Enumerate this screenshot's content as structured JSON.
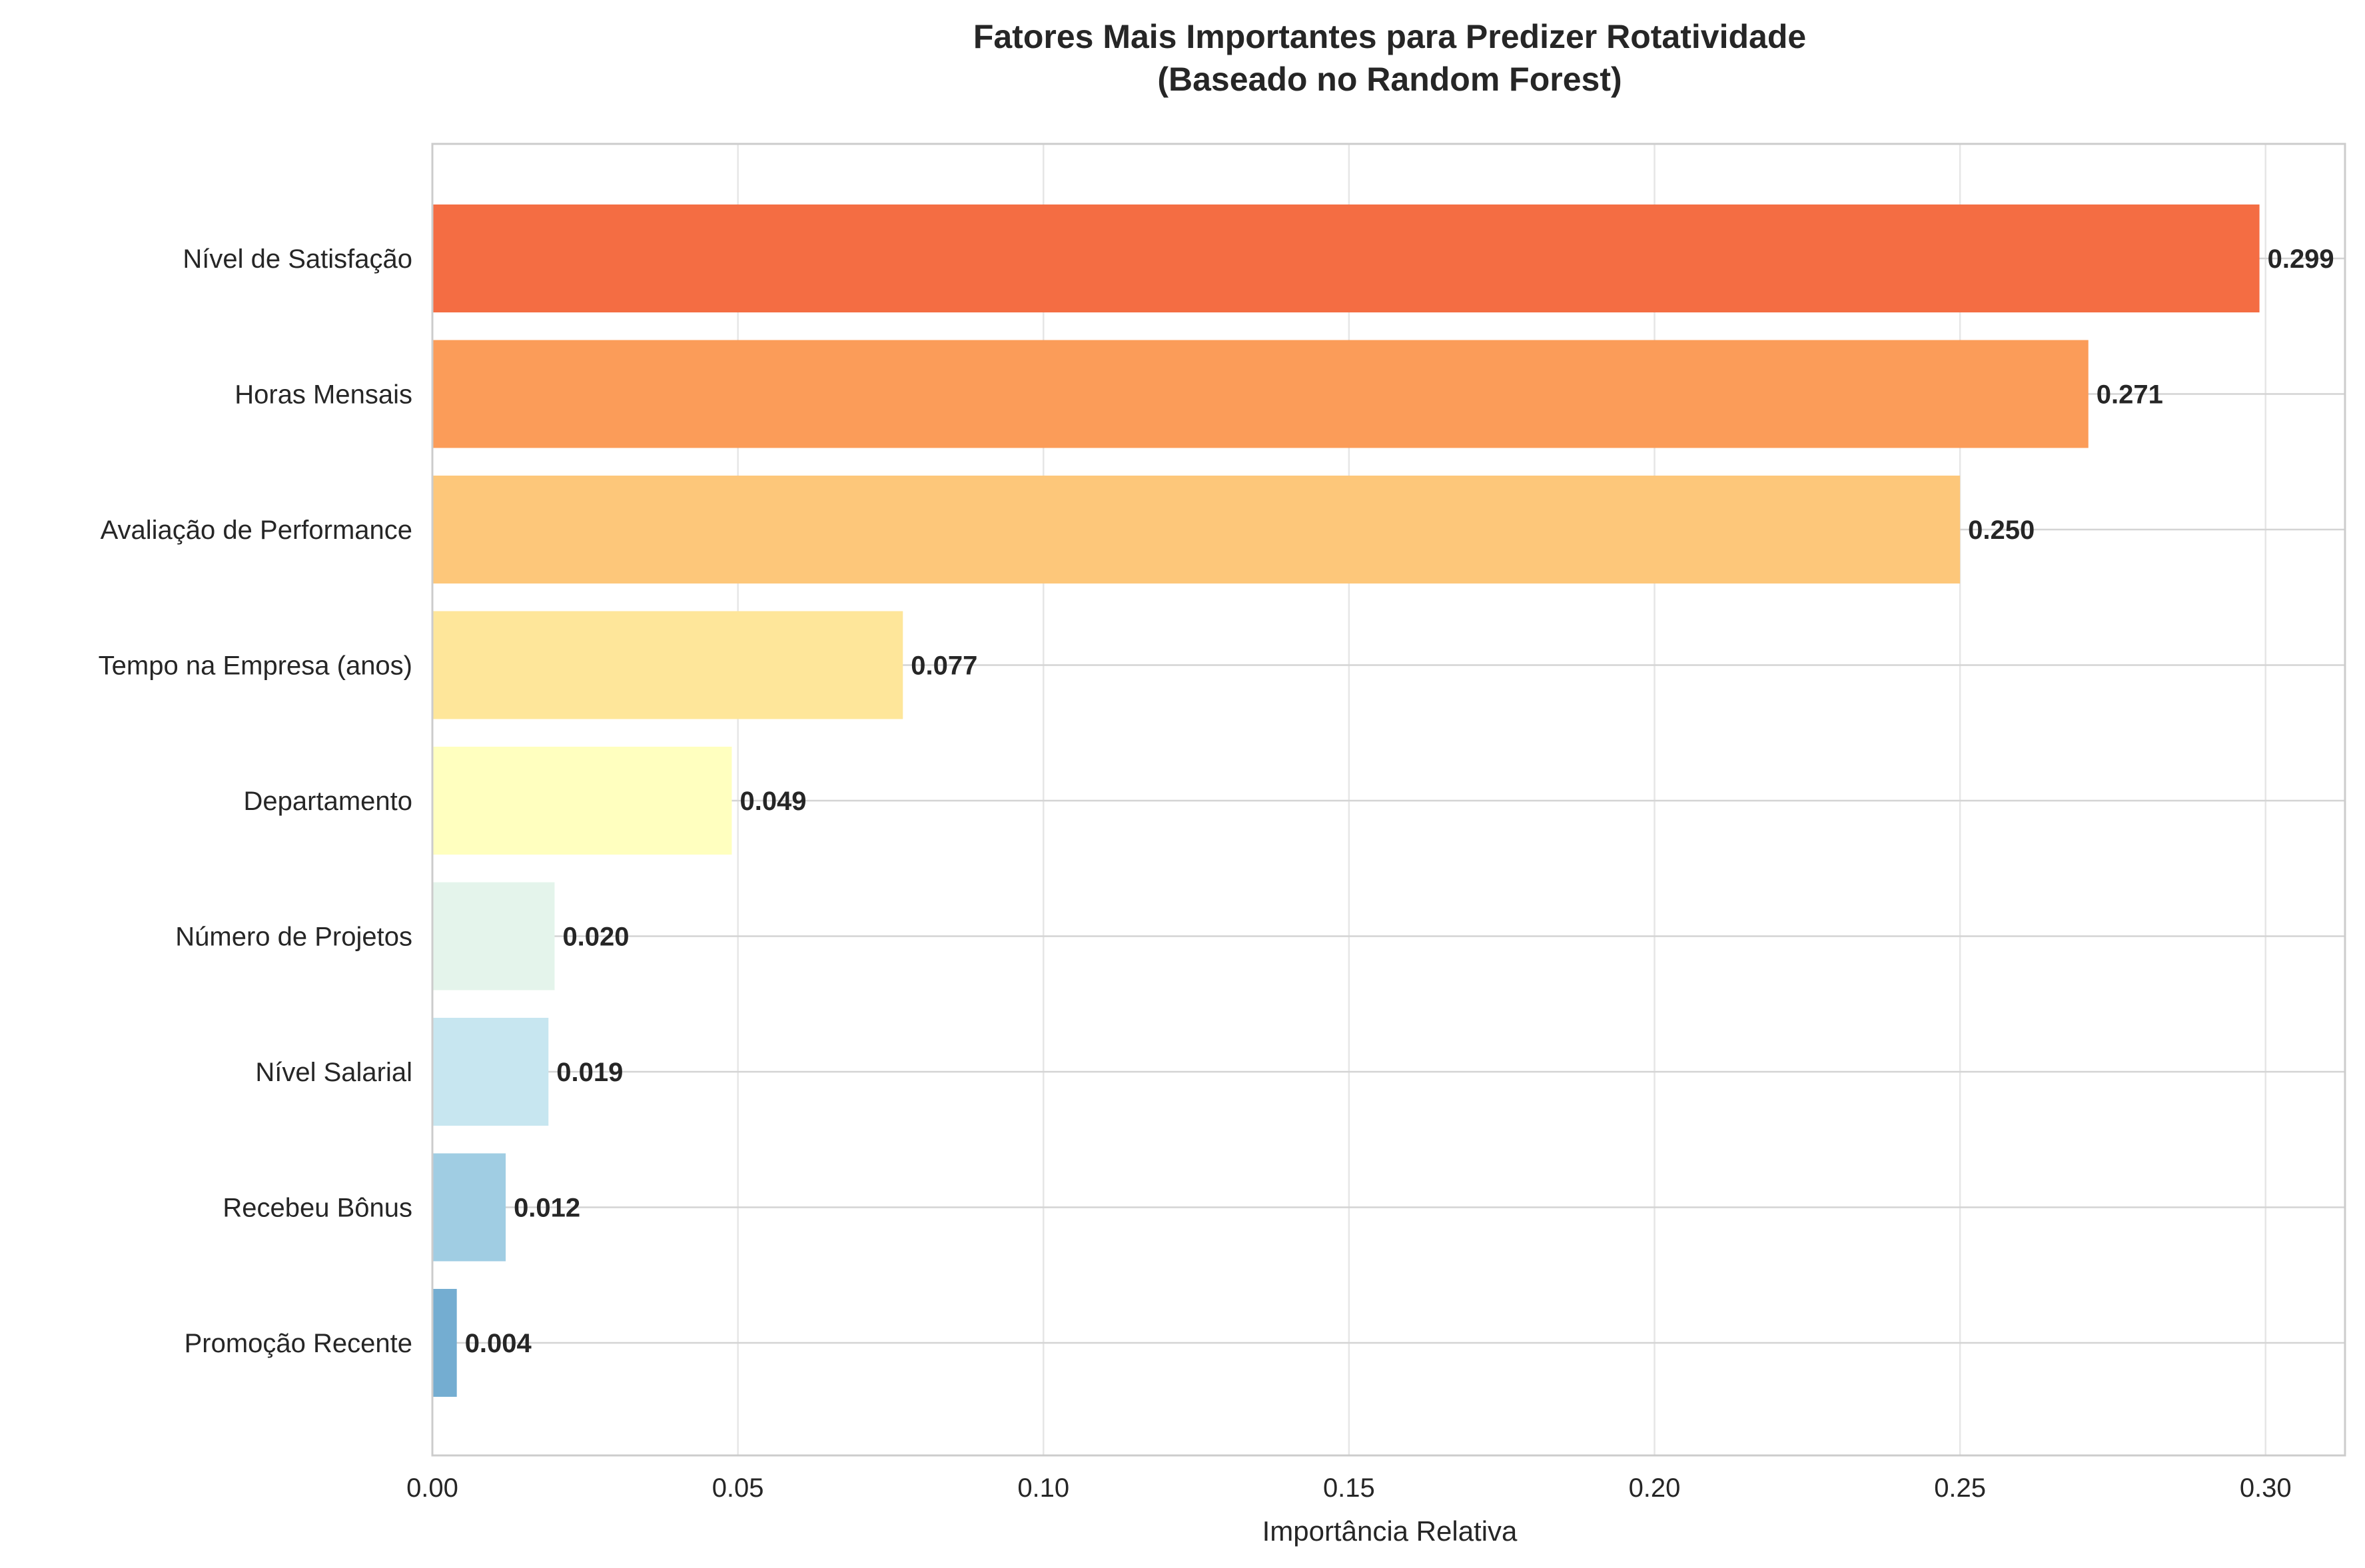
{
  "chart_data": {
    "type": "bar",
    "orientation": "horizontal",
    "title": "Fatores Mais Importantes para Predizer Rotatividade",
    "subtitle": "(Baseado no Random Forest)",
    "xlabel": "Importância Relativa",
    "ylabel": "",
    "xlim": [
      0,
      0.313
    ],
    "xticks": [
      "0.00",
      "0.05",
      "0.10",
      "0.15",
      "0.20",
      "0.25",
      "0.30"
    ],
    "xtick_values": [
      0,
      0.05,
      0.1,
      0.15,
      0.2,
      0.25,
      0.3
    ],
    "grid": true,
    "categories": [
      "Nível de Satisfação",
      "Horas Mensais",
      "Avaliação de Performance",
      "Tempo na Empresa (anos)",
      "Departamento",
      "Número de Projetos",
      "Nível Salarial",
      "Recebeu Bônus",
      "Promoção Recente"
    ],
    "values": [
      0.299,
      0.271,
      0.25,
      0.077,
      0.049,
      0.02,
      0.019,
      0.012,
      0.004
    ],
    "value_labels": [
      "0.299",
      "0.271",
      "0.250",
      "0.077",
      "0.049",
      "0.020",
      "0.019",
      "0.012",
      "0.004"
    ],
    "colors": [
      "#f46d43",
      "#fb9c59",
      "#fdc77a",
      "#fee69a",
      "#ffffbf",
      "#e4f4eb",
      "#c7e6f0",
      "#a0cde3",
      "#74add1"
    ]
  }
}
